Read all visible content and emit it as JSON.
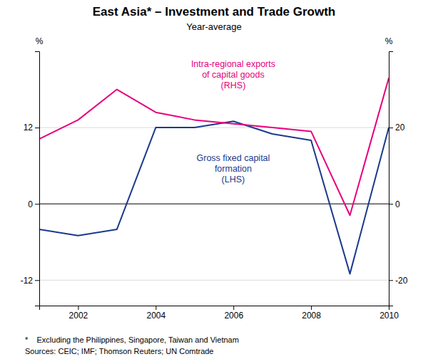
{
  "chart_data": {
    "type": "line",
    "title": "East Asia* – Investment and Trade Growth",
    "subtitle": "Year-average",
    "footnotes": [
      "*    Excluding the Philippines, Singapore, Taiwan and Vietnam",
      "Sources: CEIC; IMF; Thomson Reuters; UN Comtrade"
    ],
    "y_label": "%",
    "y2_label": "%",
    "x": [
      2001,
      2002,
      2003,
      2004,
      2005,
      2006,
      2007,
      2008,
      2009,
      2010
    ],
    "xlim": [
      2001,
      2010
    ],
    "xticks": [
      2002,
      2004,
      2006,
      2008,
      2010
    ],
    "ylim": [
      -16,
      24
    ],
    "yticks": [
      -12,
      0,
      12
    ],
    "y2lim": [
      -26.67,
      40
    ],
    "y2ticks": [
      -20,
      0,
      20
    ],
    "grid": true,
    "series": [
      {
        "name": "Gross fixed capital\nformation\n(LHS)",
        "color": "#1b3a8c",
        "values": [
          -4,
          -5,
          -4,
          12,
          12,
          13,
          11,
          10,
          -11,
          12
        ]
      },
      {
        "name": "Intra-regional exports\nof capital goods\n(RHS)",
        "color": "#e8007d",
        "axis": "y2",
        "values": [
          17,
          22,
          30,
          24,
          22,
          21,
          20,
          19,
          -3,
          33
        ]
      }
    ]
  }
}
